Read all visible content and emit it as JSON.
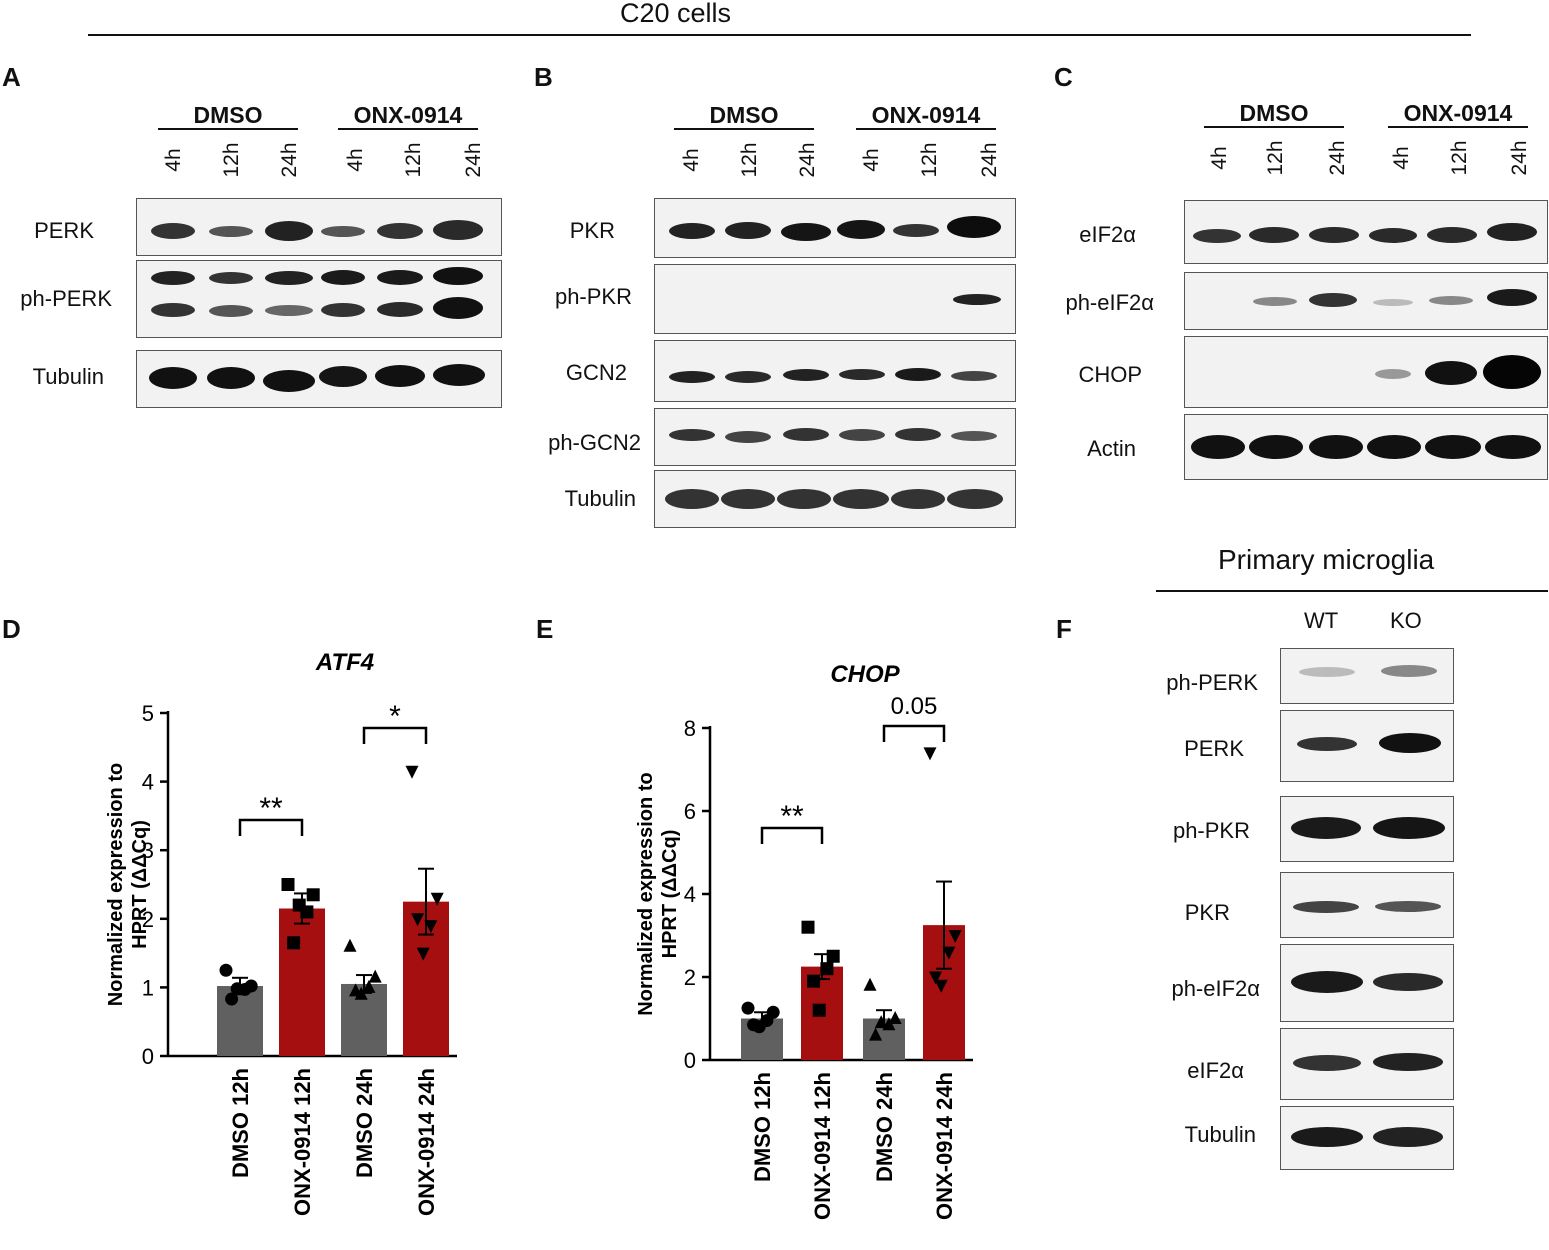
{
  "header": {
    "title": "C20 cells",
    "microglia_title": "Primary microglia"
  },
  "panels": {
    "A": {
      "letter": "A",
      "conditions": [
        "DMSO",
        "ONX-0914"
      ],
      "times": [
        "4h",
        "12h",
        "24h",
        "4h",
        "12h",
        "24h"
      ],
      "rows": [
        "PERK",
        "ph-PERK",
        "Tubulin"
      ]
    },
    "B": {
      "letter": "B",
      "conditions": [
        "DMSO",
        "ONX-0914"
      ],
      "times": [
        "4h",
        "12h",
        "24h",
        "4h",
        "12h",
        "24h"
      ],
      "rows": [
        "PKR",
        "ph-PKR",
        "GCN2",
        "ph-GCN2",
        "Tubulin"
      ]
    },
    "C": {
      "letter": "C",
      "conditions": [
        "DMSO",
        "ONX-0914"
      ],
      "times": [
        "4h",
        "12h",
        "24h",
        "4h",
        "12h",
        "24h"
      ],
      "rows": [
        "eIF2α",
        "ph-eIF2α",
        "CHOP",
        "Actin"
      ]
    },
    "D": {
      "letter": "D"
    },
    "E": {
      "letter": "E"
    },
    "F": {
      "letter": "F",
      "columns": [
        "WT",
        "KO"
      ],
      "rows": [
        "ph-PERK",
        "PERK",
        "ph-PKR",
        "PKR",
        "ph-eIF2α",
        "eIF2α",
        "Tubulin"
      ]
    }
  },
  "colors": {
    "dmso": "#606060",
    "onx": "#a50f0f"
  },
  "chart_data": [
    {
      "type": "bar",
      "title": "ATF4",
      "ylabel": "Normalized expression to HPRT (ΔΔCq)",
      "ylim": [
        0,
        5
      ],
      "yticks": [
        "0",
        "1",
        "2",
        "3",
        "4",
        "5"
      ],
      "categories": [
        "DMSO 12h",
        "ONX-0914 12h",
        "DMSO 24h",
        "ONX-0914 24h"
      ],
      "values": [
        1.02,
        2.15,
        1.05,
        2.25
      ],
      "errors": [
        0.12,
        0.22,
        0.13,
        0.48
      ],
      "points": [
        [
          1.25,
          1.02,
          0.97,
          0.83,
          0.98
        ],
        [
          2.5,
          2.35,
          2.1,
          1.65,
          2.2
        ],
        [
          1.6,
          1.15,
          1.0,
          0.95,
          0.9
        ],
        [
          4.15,
          2.3,
          1.9,
          2.0,
          1.5
        ]
      ],
      "markers": [
        "circle",
        "square",
        "triangle-up",
        "triangle-down"
      ],
      "comparisons": [
        {
          "from": 0,
          "to": 1,
          "label": "**"
        },
        {
          "from": 2,
          "to": 3,
          "label": "*"
        }
      ],
      "grid": false
    },
    {
      "type": "bar",
      "title": "CHOP",
      "ylabel": "Normalized expression to HPRT (ΔΔCq)",
      "ylim": [
        0,
        8
      ],
      "yticks": [
        "0",
        "2",
        "4",
        "6",
        "8"
      ],
      "categories": [
        "DMSO 12h",
        "ONX-0914 12h",
        "DMSO 24h",
        "ONX-0914 24h"
      ],
      "values": [
        1.0,
        2.25,
        1.0,
        3.25
      ],
      "errors": [
        0.15,
        0.3,
        0.2,
        1.05
      ],
      "points": [
        [
          1.25,
          1.15,
          0.95,
          0.85,
          0.8
        ],
        [
          3.2,
          2.5,
          2.2,
          1.9,
          1.2
        ],
        [
          1.8,
          1.0,
          0.85,
          0.6,
          0.9
        ],
        [
          7.4,
          3.0,
          2.6,
          2.0,
          1.8
        ]
      ],
      "markers": [
        "circle",
        "square",
        "triangle-up",
        "triangle-down"
      ],
      "comparisons": [
        {
          "from": 0,
          "to": 1,
          "label": "**"
        },
        {
          "from": 2,
          "to": 3,
          "label": "0.05"
        }
      ],
      "grid": false
    }
  ]
}
